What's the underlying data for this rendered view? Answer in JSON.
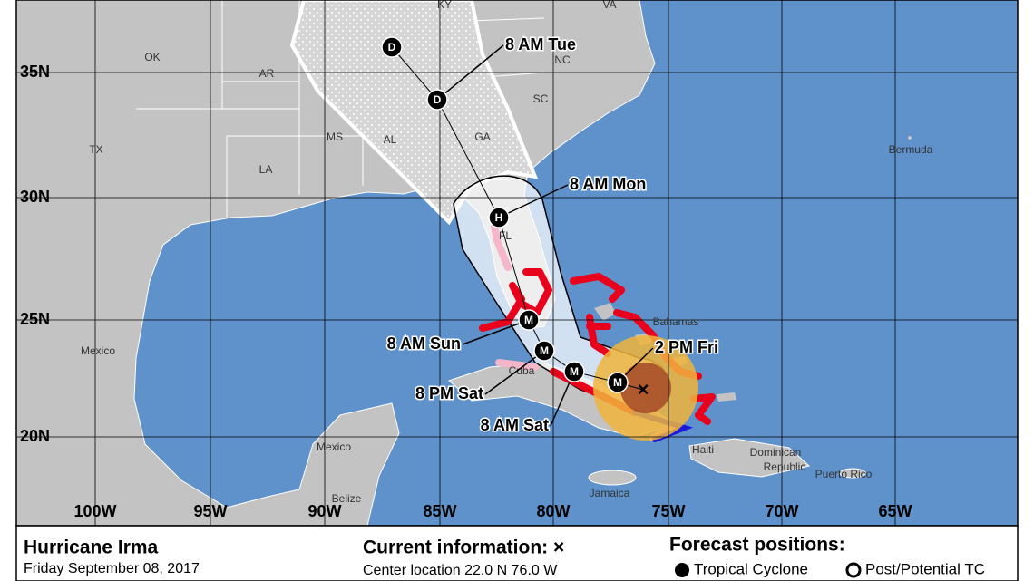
{
  "map": {
    "lat_labels": [
      "35N",
      "30N",
      "25N",
      "20N"
    ],
    "lon_labels": [
      "100W",
      "95W",
      "90W",
      "85W",
      "80W",
      "75W",
      "70W",
      "65W"
    ],
    "place_labels": [
      "KY",
      "VA",
      "OK",
      "AR",
      "NC",
      "SC",
      "MS",
      "AL",
      "GA",
      "TX",
      "LA",
      "FL",
      "Mexico",
      "Mexico",
      "Bermuda",
      "Bahamas",
      "Cuba",
      "Haiti",
      "Dominican",
      "Republic",
      "Puerto Rico",
      "Jamaica",
      "Belize"
    ],
    "markers": [
      "D",
      "D",
      "H",
      "M",
      "M",
      "M",
      "M"
    ],
    "forecast_labels": [
      "8 AM Tue",
      "8 AM Mon",
      "8 AM Sun",
      "8 PM Sat",
      "8 AM Sat",
      "2 PM Fri"
    ]
  },
  "footer": {
    "title": "Hurricane Irma",
    "date": "Friday September 08, 2017",
    "current_heading": "Current information: ×",
    "center_location": "Center location 22.0 N 76.0 W",
    "forecast_heading": "Forecast positions:",
    "legend": [
      "Tropical Cyclone",
      "Post/Potential TC"
    ]
  }
}
